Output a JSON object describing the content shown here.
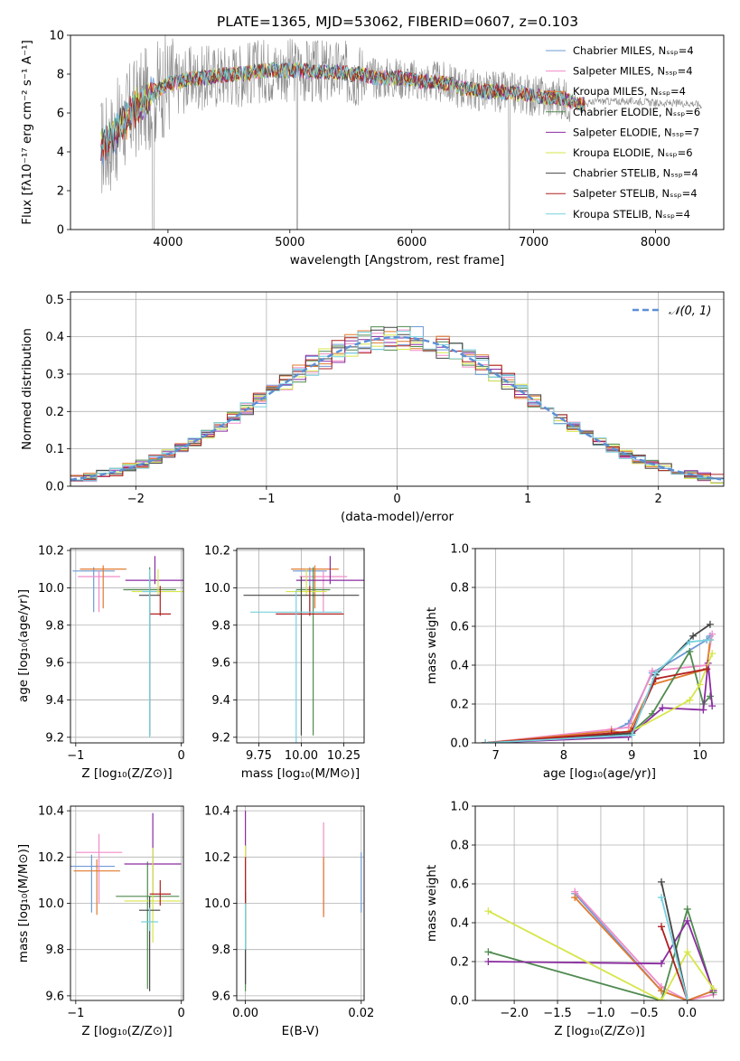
{
  "colors": {
    "chabrier_miles": "#6e9bd6",
    "salpeter_miles": "#f08cc8",
    "kroupa_miles": "#e07a2e",
    "chabrier_elodie": "#4f8a4f",
    "salpeter_elodie": "#8a2ca0",
    "kroupa_elodie": "#d6e64a",
    "chabrier_stelib": "#454545",
    "salpeter_stelib": "#b02020",
    "kroupa_stelib": "#76d1df",
    "gray": "#8c8c8c",
    "normal": "#5b8fd6"
  },
  "chart_data": [
    {
      "type": "line",
      "title": "PLATE=1365, MJD=53062, FIBERID=0607, z=0.103",
      "xlabel": "wavelength [Angstrom, rest frame]",
      "ylabel": "Flux [fλ10⁻¹⁷ erg cm⁻² s⁻¹ A⁻¹]",
      "xlim": [
        3200,
        8560
      ],
      "ylim": [
        0,
        10
      ],
      "xticks": [
        "4000",
        "5000",
        "6000",
        "7000",
        "8000"
      ],
      "yticks": [
        "0",
        "2",
        "4",
        "6",
        "8",
        "10"
      ],
      "legend_position": "right",
      "legend": [
        {
          "label": "Chabrier MILES, Nₛₛₚ=4",
          "color_key": "chabrier_miles"
        },
        {
          "label": "Salpeter MILES, Nₛₛₚ=4",
          "color_key": "salpeter_miles"
        },
        {
          "label": "Kroupa MILES, Nₛₛₚ=4",
          "color_key": "kroupa_miles"
        },
        {
          "label": "Chabrier ELODIE, Nₛₛₚ=6",
          "color_key": "chabrier_elodie"
        },
        {
          "label": "Salpeter ELODIE, Nₛₛₚ=7",
          "color_key": "salpeter_elodie"
        },
        {
          "label": "Kroupa ELODIE, Nₛₛₚ=6",
          "color_key": "kroupa_elodie"
        },
        {
          "label": "Chabrier STELIB, Nₛₛₚ=4",
          "color_key": "chabrier_stelib"
        },
        {
          "label": "Salpeter STELIB, Nₛₛₚ=4",
          "color_key": "salpeter_stelib"
        },
        {
          "label": "Kroupa STELIB, Nₛₛₚ=4",
          "color_key": "kroupa_stelib"
        }
      ],
      "series": [
        {
          "x": [
            3450,
            3520,
            3600,
            3680,
            3760,
            3840,
            3920,
            4000,
            4100,
            4200,
            4300,
            4400,
            4500,
            4600,
            4700,
            4800,
            4900,
            5000,
            5100,
            5200,
            5300,
            5400,
            5500,
            5600,
            5700,
            5800,
            5900,
            6000,
            6100,
            6200,
            6300,
            6400,
            6500,
            6600,
            6700,
            6800,
            6900,
            7000,
            7100,
            7200,
            7300,
            7400,
            7500,
            7600,
            7700,
            7800,
            7900,
            8000,
            8100,
            8200,
            8300,
            8380
          ],
          "y": [
            4.2,
            4.5,
            5.2,
            5.9,
            6.4,
            6.8,
            7.2,
            7.5,
            7.6,
            7.8,
            7.8,
            7.9,
            8.0,
            8.0,
            8.1,
            8.2,
            8.2,
            8.2,
            8.2,
            8.1,
            8.1,
            8.1,
            8.0,
            8.0,
            7.8,
            7.8,
            7.8,
            7.7,
            7.6,
            7.6,
            7.5,
            7.3,
            7.2,
            7.1,
            7.1,
            7.0,
            7.0,
            6.9,
            6.8,
            6.8,
            6.6,
            6.4,
            6.6,
            6.6,
            6.6,
            6.6,
            6.6,
            6.5,
            6.5,
            6.5,
            6.5,
            6.4
          ]
        }
      ]
    },
    {
      "type": "line",
      "xlabel": "(data-model)/error",
      "ylabel": "Normed distribution",
      "xlim": [
        -2.5,
        2.5
      ],
      "ylim": [
        0,
        0.52
      ],
      "xticks": [
        "−2",
        "−1",
        "0",
        "1",
        "2"
      ],
      "yticks": [
        "0.0",
        "0.1",
        "0.2",
        "0.3",
        "0.4",
        "0.5"
      ],
      "legend": [
        "𝒩(0, 1)"
      ],
      "bin_width": 0.1,
      "bins_from": -2.5,
      "series": [
        {
          "name": "𝒩(0, 1)",
          "type": "normal",
          "mean": 0,
          "sigma": 1
        }
      ]
    },
    {
      "type": "scatter",
      "xlabel": "Z [log₁₀(Z/Z⊙)]",
      "ylabel": "age  [log₁₀(age/yr)]",
      "xlim": [
        -1.05,
        0.02
      ],
      "ylim": [
        9.17,
        10.21
      ],
      "xticks": [
        "−1",
        "0"
      ],
      "yticks": [
        "9.2",
        "9.4",
        "9.6",
        "9.8",
        "10.0",
        "10.2"
      ],
      "points": [
        {
          "x": -0.83,
          "y": 10.09,
          "xerr": 0.2,
          "yerr": [
            0.22,
            0.02
          ],
          "color_key": "chabrier_miles"
        },
        {
          "x": -0.78,
          "y": 10.06,
          "xerr": 0.2,
          "yerr": [
            0.19,
            0.03
          ],
          "color_key": "salpeter_miles"
        },
        {
          "x": -0.74,
          "y": 10.1,
          "xerr": 0.22,
          "yerr": [
            0.21,
            0.02
          ],
          "color_key": "kroupa_miles"
        },
        {
          "x": -0.3,
          "y": 9.99,
          "xerr": 0.25,
          "yerr": [
            0.78,
            0.12
          ],
          "color_key": "chabrier_elodie"
        },
        {
          "x": -0.25,
          "y": 10.04,
          "xerr": 0.28,
          "yerr": [
            0.02,
            0.13
          ],
          "color_key": "salpeter_elodie"
        },
        {
          "x": -0.22,
          "y": 9.98,
          "xerr": 0.25,
          "yerr": [
            0.02,
            0.12
          ],
          "color_key": "kroupa_elodie"
        },
        {
          "x": -0.3,
          "y": 9.96,
          "xerr": 0.1,
          "yerr": [
            0.75,
            0.1
          ],
          "color_key": "chabrier_stelib"
        },
        {
          "x": -0.2,
          "y": 9.86,
          "xerr": 0.1,
          "yerr": [
            0.01,
            0.15
          ],
          "color_key": "salpeter_stelib"
        },
        {
          "x": -0.3,
          "y": 9.98,
          "xerr": 0.07,
          "yerr": [
            0.78,
            0.12
          ],
          "color_key": "kroupa_stelib"
        }
      ]
    },
    {
      "type": "scatter",
      "xlabel": "mass [log₁₀(M/M⊙)]",
      "xlim": [
        9.62,
        10.37
      ],
      "ylim": [
        9.17,
        10.21
      ],
      "xticks": [
        "9.75",
        "10.00",
        "10.25"
      ],
      "yticks": [
        "9.2",
        "9.4",
        "9.6",
        "9.8",
        "10.0",
        "10.2"
      ],
      "points": [
        {
          "x": 10.05,
          "y": 10.09,
          "xerr": 0.1,
          "yerr": [
            0.22,
            0.02
          ],
          "color_key": "chabrier_miles"
        },
        {
          "x": 10.13,
          "y": 10.06,
          "xerr": 0.14,
          "yerr": [
            0.19,
            0.03
          ],
          "color_key": "salpeter_miles"
        },
        {
          "x": 10.08,
          "y": 10.1,
          "xerr": 0.14,
          "yerr": [
            0.21,
            0.02
          ],
          "color_key": "kroupa_miles"
        },
        {
          "x": 10.07,
          "y": 9.99,
          "xerr": 0.1,
          "yerr": [
            0.78,
            0.12
          ],
          "color_key": "chabrier_elodie"
        },
        {
          "x": 10.17,
          "y": 10.04,
          "xerr": 0.2,
          "yerr": [
            0.02,
            0.13
          ],
          "color_key": "salpeter_elodie"
        },
        {
          "x": 10.03,
          "y": 9.98,
          "xerr": 0.12,
          "yerr": [
            0.02,
            0.12
          ],
          "color_key": "kroupa_elodie"
        },
        {
          "x": 10.0,
          "y": 9.96,
          "xerr": 0.34,
          "yerr": [
            0.75,
            0.1
          ],
          "color_key": "chabrier_stelib"
        },
        {
          "x": 10.05,
          "y": 9.86,
          "xerr": 0.2,
          "yerr": [
            0.01,
            0.15
          ],
          "color_key": "salpeter_stelib"
        },
        {
          "x": 9.97,
          "y": 9.87,
          "xerr": 0.27,
          "yerr": [
            0.78,
            0.12
          ],
          "color_key": "kroupa_stelib"
        }
      ]
    },
    {
      "type": "line",
      "xlabel": "age  [log₁₀(age/yr)]",
      "ylabel": "mass weight",
      "xlim": [
        6.7,
        10.35
      ],
      "ylim": [
        0,
        1
      ],
      "xticks": [
        "7",
        "8",
        "9",
        "10"
      ],
      "yticks": [
        "0.0",
        "0.2",
        "0.4",
        "0.6",
        "0.8",
        "1.0"
      ],
      "series": [
        {
          "color_key": "chabrier_miles",
          "x": [
            6.85,
            8.7,
            8.95,
            9.3,
            10.1,
            10.15
          ],
          "y": [
            0.0,
            0.06,
            0.1,
            0.36,
            0.53,
            0.55
          ]
        },
        {
          "color_key": "salpeter_miles",
          "x": [
            6.85,
            8.7,
            8.95,
            9.3,
            10.1,
            10.18
          ],
          "y": [
            0.0,
            0.07,
            0.08,
            0.37,
            0.4,
            0.56
          ]
        },
        {
          "color_key": "kroupa_miles",
          "x": [
            6.85,
            8.7,
            8.95,
            9.3,
            10.1,
            10.15
          ],
          "y": [
            0.0,
            0.06,
            0.05,
            0.3,
            0.38,
            0.53
          ]
        },
        {
          "color_key": "chabrier_elodie",
          "x": [
            6.85,
            8.95,
            9.3,
            9.85,
            10.05,
            10.15
          ],
          "y": [
            0.0,
            0.04,
            0.15,
            0.47,
            0.2,
            0.24
          ]
        },
        {
          "color_key": "salpeter_elodie",
          "x": [
            6.85,
            8.95,
            9.45,
            10.05,
            10.12,
            10.18
          ],
          "y": [
            0.0,
            0.03,
            0.18,
            0.17,
            0.41,
            0.19
          ]
        },
        {
          "color_key": "kroupa_elodie",
          "x": [
            6.85,
            8.95,
            9.85,
            10.0,
            10.18
          ],
          "y": [
            0.0,
            0.05,
            0.22,
            0.3,
            0.46
          ]
        },
        {
          "color_key": "chabrier_stelib",
          "x": [
            6.85,
            9.0,
            9.35,
            9.9,
            10.15
          ],
          "y": [
            0.0,
            0.05,
            0.35,
            0.55,
            0.61
          ]
        },
        {
          "color_key": "salpeter_stelib",
          "x": [
            6.85,
            8.7,
            9.0,
            9.35,
            10.1
          ],
          "y": [
            0.0,
            0.05,
            0.06,
            0.33,
            0.38
          ]
        },
        {
          "color_key": "kroupa_stelib",
          "x": [
            6.85,
            9.0,
            9.35,
            9.85,
            10.15
          ],
          "y": [
            0.0,
            0.04,
            0.36,
            0.52,
            0.53
          ]
        }
      ]
    },
    {
      "type": "scatter",
      "xlabel": "Z [log₁₀(Z/Z⊙)]",
      "ylabel": "mass [log₁₀(M/M⊙)]",
      "xlim": [
        -1.05,
        0.02
      ],
      "ylim": [
        9.58,
        10.42
      ],
      "xticks": [
        "−1",
        "0"
      ],
      "yticks": [
        "9.6",
        "9.8",
        "10.0",
        "10.2",
        "10.4"
      ],
      "points": [
        {
          "x": -0.85,
          "y": 10.16,
          "xerr": 0.22,
          "yerr": [
            0.2,
            0.05
          ],
          "color_key": "chabrier_miles"
        },
        {
          "x": -0.78,
          "y": 10.22,
          "xerr": 0.22,
          "yerr": [
            0.22,
            0.08
          ],
          "color_key": "salpeter_miles"
        },
        {
          "x": -0.8,
          "y": 10.14,
          "xerr": 0.22,
          "yerr": [
            0.19,
            0.05
          ],
          "color_key": "kroupa_miles"
        },
        {
          "x": -0.32,
          "y": 10.03,
          "xerr": 0.3,
          "yerr": [
            0.4,
            0.15
          ],
          "color_key": "chabrier_elodie"
        },
        {
          "x": -0.27,
          "y": 10.17,
          "xerr": 0.27,
          "yerr": [
            0.13,
            0.22
          ],
          "color_key": "salpeter_elodie"
        },
        {
          "x": -0.27,
          "y": 10.01,
          "xerr": 0.27,
          "yerr": [
            0.18,
            0.23
          ],
          "color_key": "kroupa_elodie"
        },
        {
          "x": -0.3,
          "y": 9.97,
          "xerr": 0.1,
          "yerr": [
            0.35,
            0.06
          ],
          "color_key": "chabrier_stelib"
        },
        {
          "x": -0.2,
          "y": 10.04,
          "xerr": 0.1,
          "yerr": [
            0.05,
            0.06
          ],
          "color_key": "salpeter_stelib"
        },
        {
          "x": -0.3,
          "y": 9.92,
          "xerr": 0.08,
          "yerr": [
            0.04,
            0.06
          ],
          "color_key": "kroupa_stelib"
        }
      ]
    },
    {
      "type": "scatter",
      "xlabel": "E(B-V)",
      "xlim": [
        -0.0015,
        0.0205
      ],
      "ylim": [
        9.58,
        10.42
      ],
      "xticks": [
        "0.00",
        "0.02"
      ],
      "yticks": [
        "9.6",
        "9.8",
        "10.0",
        "10.2",
        "10.4"
      ],
      "points": [
        {
          "x": 0.02,
          "y": 10.11,
          "yerr": [
            0.15,
            0.11
          ],
          "color_key": "chabrier_miles"
        },
        {
          "x": 0.0135,
          "y": 10.15,
          "yerr": [
            0.2,
            0.2
          ],
          "color_key": "salpeter_miles"
        },
        {
          "x": 0.0135,
          "y": 10.07,
          "yerr": [
            0.13,
            0.13
          ],
          "color_key": "kroupa_miles"
        },
        {
          "x": 0.0,
          "y": 10.0,
          "yerr": [
            0.38,
            0.1
          ],
          "color_key": "chabrier_elodie"
        },
        {
          "x": 0.0,
          "y": 10.2,
          "yerr": [
            0.2,
            0.2
          ],
          "color_key": "salpeter_elodie"
        },
        {
          "x": 0.0,
          "y": 10.05,
          "yerr": [
            0.2,
            0.2
          ],
          "color_key": "kroupa_elodie"
        },
        {
          "x": 0.0,
          "y": 9.95,
          "yerr": [
            0.3,
            0.1
          ],
          "color_key": "chabrier_stelib"
        },
        {
          "x": 0.0,
          "y": 10.1,
          "yerr": [
            0.1,
            0.1
          ],
          "color_key": "salpeter_stelib"
        },
        {
          "x": 0.0,
          "y": 9.9,
          "yerr": [
            0.1,
            0.1
          ],
          "color_key": "kroupa_stelib"
        }
      ]
    },
    {
      "type": "line",
      "xlabel": "Z [log₁₀(Z/Z⊙)]",
      "ylabel": "mass weight",
      "xlim": [
        -2.45,
        0.42
      ],
      "ylim": [
        0,
        1
      ],
      "xticks": [
        "−2.0",
        "−1.5",
        "−1.0",
        "−0.5",
        "0.0"
      ],
      "yticks": [
        "0.0",
        "0.2",
        "0.4",
        "0.6",
        "0.8",
        "1.0"
      ],
      "series": [
        {
          "color_key": "chabrier_miles",
          "x": [
            -1.3,
            -0.3,
            0.0,
            0.3
          ],
          "y": [
            0.55,
            0.05,
            0.0,
            0.05
          ]
        },
        {
          "color_key": "salpeter_miles",
          "x": [
            -1.3,
            -0.3,
            0.0,
            0.3
          ],
          "y": [
            0.56,
            0.07,
            0.0,
            0.03
          ]
        },
        {
          "color_key": "kroupa_miles",
          "x": [
            -1.3,
            -0.3,
            0.0,
            0.3
          ],
          "y": [
            0.53,
            0.05,
            0.0,
            0.05
          ]
        },
        {
          "color_key": "chabrier_elodie",
          "x": [
            -2.3,
            -0.3,
            0.0,
            0.3
          ],
          "y": [
            0.25,
            0.0,
            0.47,
            0.04
          ]
        },
        {
          "color_key": "salpeter_elodie",
          "x": [
            -2.3,
            -0.3,
            0.0,
            0.3
          ],
          "y": [
            0.2,
            0.19,
            0.41,
            0.05
          ]
        },
        {
          "color_key": "kroupa_elodie",
          "x": [
            -2.3,
            -0.3,
            0.0,
            0.3
          ],
          "y": [
            0.46,
            0.0,
            0.25,
            0.06
          ]
        },
        {
          "color_key": "chabrier_stelib",
          "x": [
            -0.3,
            0.0
          ],
          "y": [
            0.61,
            0.0
          ]
        },
        {
          "color_key": "salpeter_stelib",
          "x": [
            -0.3,
            0.0
          ],
          "y": [
            0.38,
            0.0
          ]
        },
        {
          "color_key": "kroupa_stelib",
          "x": [
            -0.3,
            0.0
          ],
          "y": [
            0.53,
            0.0
          ]
        }
      ]
    }
  ]
}
